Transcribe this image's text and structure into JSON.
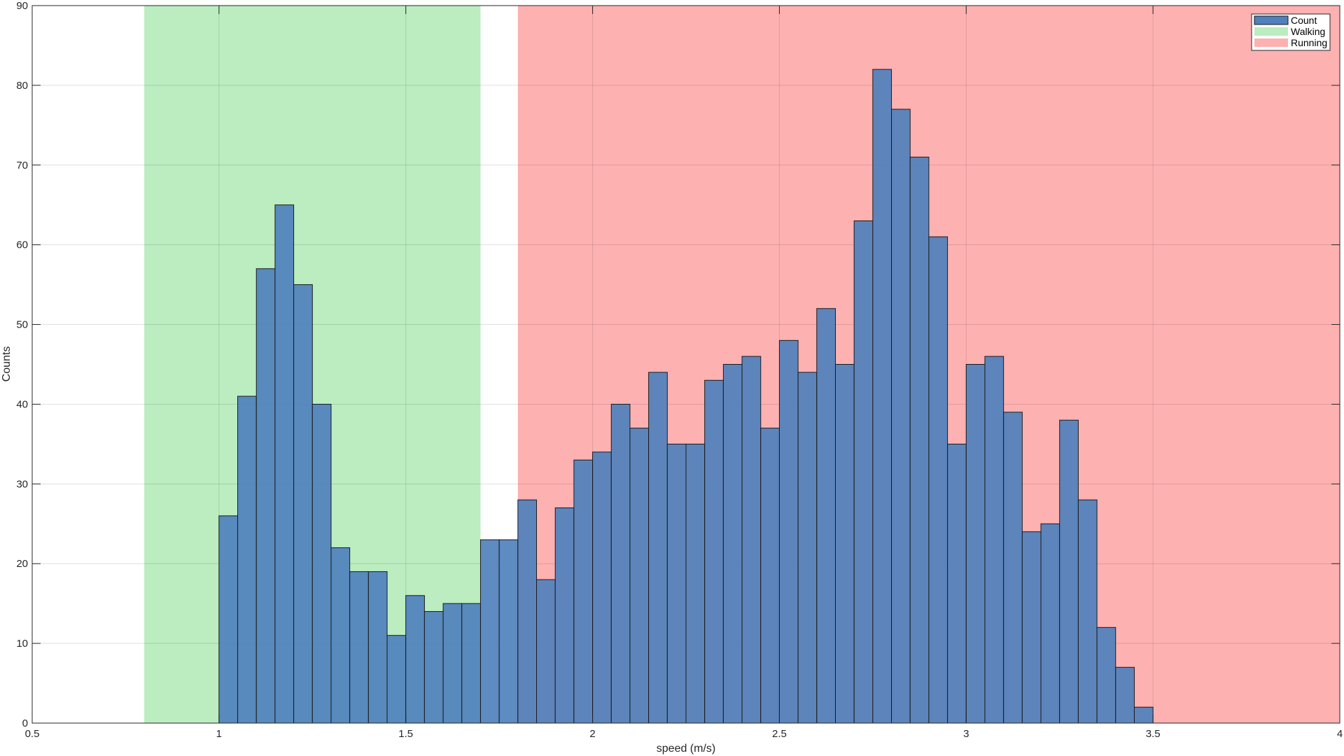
{
  "chart_data": {
    "type": "bar",
    "xlabel": "speed (m/s)",
    "ylabel": "Counts",
    "xlim": [
      0.5,
      4
    ],
    "ylim": [
      0,
      90
    ],
    "xticks": [
      0.5,
      1,
      1.5,
      2,
      2.5,
      3,
      3.5,
      4
    ],
    "xtick_labels": [
      "0.5",
      "1",
      "1.5",
      "2",
      "2.5",
      "3",
      "3.5",
      "4"
    ],
    "yticks": [
      0,
      10,
      20,
      30,
      40,
      50,
      60,
      70,
      80,
      90
    ],
    "ytick_labels": [
      "0",
      "10",
      "20",
      "30",
      "40",
      "50",
      "60",
      "70",
      "80",
      "90"
    ],
    "grid": true,
    "legend_position": "top-right",
    "regions": [
      {
        "name": "Walking",
        "x_start": 0.8,
        "x_end": 1.7,
        "color": "#bbedc0"
      },
      {
        "name": "Running",
        "x_start": 1.8,
        "x_end": 4.0,
        "color": "#feb1b1"
      }
    ],
    "bin_width": 0.05,
    "bin_start": 1.0,
    "values": [
      26,
      41,
      57,
      65,
      55,
      40,
      22,
      19,
      19,
      11,
      16,
      14,
      15,
      15,
      23,
      23,
      28,
      18,
      27,
      33,
      34,
      40,
      37,
      44,
      35,
      35,
      43,
      45,
      46,
      37,
      48,
      44,
      52,
      45,
      63,
      82,
      77,
      71,
      61,
      35,
      45,
      46,
      39,
      24,
      25,
      38,
      28,
      12,
      7,
      2
    ],
    "series": [
      {
        "name": "Count",
        "color": "#4f81bd"
      }
    ]
  }
}
